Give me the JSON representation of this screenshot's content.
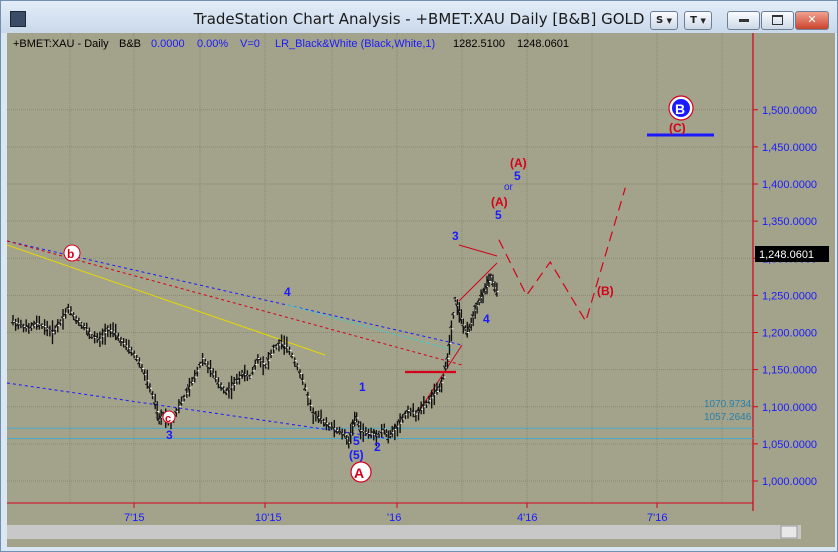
{
  "window": {
    "title": "TradeStation Chart Analysis - +BMET:XAU Daily [B&B] GOLD",
    "btn_s": "S",
    "btn_t": "T"
  },
  "header": {
    "symbol": "+BMET:XAU - Daily",
    "study": "B&B",
    "val1": "0.0000",
    "val2": "0.00%",
    "v": "V=0",
    "lr": "LR_Black&White (Black,White,1)",
    "p1": "1282.5100",
    "p2": "1248.0601"
  },
  "chart_data": {
    "type": "candlestick",
    "title": "",
    "xticks": [
      "7'15",
      "10'15",
      "'16",
      "4'16",
      "7'16"
    ],
    "yticks": [
      "1,500.0000",
      "1,450.0000",
      "1,400.0000",
      "1,350.0000",
      "1,300.0000",
      "1,250.0000",
      "1,200.0000",
      "1,150.0000",
      "1,100.0000",
      "1,050.0000",
      "1,000.0000"
    ],
    "ytick_values": [
      1500,
      1450,
      1400,
      1350,
      1300,
      1250,
      1200,
      1150,
      1100,
      1050,
      1000
    ],
    "ylim": [
      980,
      1520
    ],
    "last_price": "1,248.0601",
    "support_labels": [
      "1070.9734",
      "1057.2646"
    ],
    "support_values": [
      1070.9734,
      1057.2646
    ],
    "price_path": [
      [
        0,
        1215
      ],
      [
        2,
        1210
      ],
      [
        4,
        1205
      ],
      [
        6,
        1212
      ],
      [
        8,
        1208
      ],
      [
        10,
        1200
      ],
      [
        12,
        1214
      ],
      [
        14,
        1232
      ],
      [
        16,
        1218
      ],
      [
        18,
        1208
      ],
      [
        20,
        1195
      ],
      [
        22,
        1190
      ],
      [
        24,
        1205
      ],
      [
        26,
        1198
      ],
      [
        28,
        1185
      ],
      [
        30,
        1175
      ],
      [
        32,
        1160
      ],
      [
        34,
        1135
      ],
      [
        36,
        1105
      ],
      [
        37,
        1082
      ],
      [
        38,
        1090
      ],
      [
        40,
        1080
      ],
      [
        42,
        1100
      ],
      [
        44,
        1118
      ],
      [
        46,
        1140
      ],
      [
        48,
        1165
      ],
      [
        50,
        1150
      ],
      [
        52,
        1132
      ],
      [
        54,
        1120
      ],
      [
        56,
        1130
      ],
      [
        58,
        1145
      ],
      [
        60,
        1140
      ],
      [
        62,
        1165
      ],
      [
        64,
        1155
      ],
      [
        66,
        1178
      ],
      [
        68,
        1186
      ],
      [
        70,
        1176
      ],
      [
        72,
        1155
      ],
      [
        74,
        1125
      ],
      [
        76,
        1090
      ],
      [
        78,
        1083
      ],
      [
        80,
        1075
      ],
      [
        82,
        1068
      ],
      [
        84,
        1062
      ],
      [
        85,
        1052
      ],
      [
        86,
        1075
      ],
      [
        87,
        1085
      ],
      [
        88,
        1068
      ],
      [
        90,
        1064
      ],
      [
        92,
        1062
      ],
      [
        94,
        1070
      ],
      [
        95,
        1058
      ],
      [
        96,
        1065
      ],
      [
        98,
        1078
      ],
      [
        100,
        1095
      ],
      [
        102,
        1090
      ],
      [
        104,
        1100
      ],
      [
        106,
        1112
      ],
      [
        108,
        1125
      ],
      [
        109,
        1140
      ],
      [
        110,
        1165
      ],
      [
        111,
        1205
      ],
      [
        112,
        1245
      ],
      [
        113,
        1228
      ],
      [
        114,
        1210
      ],
      [
        115,
        1200
      ],
      [
        116,
        1212
      ],
      [
        117,
        1230
      ],
      [
        118,
        1242
      ],
      [
        119,
        1252
      ],
      [
        120,
        1262
      ],
      [
        121,
        1275
      ],
      [
        122,
        1260
      ],
      [
        123,
        1250
      ]
    ],
    "projection": [
      [
        123,
        1325
      ],
      [
        130,
        1250
      ],
      [
        136,
        1295
      ],
      [
        145,
        1215
      ],
      [
        155,
        1395
      ]
    ],
    "wave_labels": [
      {
        "text": "b",
        "color": "#d4001a"
      },
      {
        "text": "c",
        "color": "#d4001a"
      },
      {
        "text": "3",
        "color": "#1a1aff"
      },
      {
        "text": "4",
        "color": "#1a1aff"
      },
      {
        "text": "1",
        "color": "#1a1aff"
      },
      {
        "text": "5",
        "color": "#1a1aff"
      },
      {
        "text": "(5)",
        "color": "#1a1aff"
      },
      {
        "text": "2",
        "color": "#1a1aff"
      },
      {
        "text": "A",
        "color": "#d4001a"
      },
      {
        "text": "3",
        "color": "#1a1aff"
      },
      {
        "text": "4",
        "color": "#1a1aff"
      },
      {
        "text": "(A)",
        "color": "#d4001a"
      },
      {
        "text": "5",
        "color": "#1a1aff"
      },
      {
        "text": "(A)",
        "color": "#d4001a"
      },
      {
        "text": "5",
        "color": "#1a1aff"
      },
      {
        "text": "or",
        "color": "#1a1aff"
      },
      {
        "text": "(B)",
        "color": "#d4001a"
      },
      {
        "text": "(C)",
        "color": "#d4001a"
      },
      {
        "text": "B",
        "color": "#ffffff"
      }
    ],
    "grid": true
  },
  "colors": {
    "background": "#a3a38b",
    "grid": "#8c8c78",
    "price_axis": "#d4001a",
    "wave_blue": "#1a1aff",
    "wave_red": "#d4001a",
    "support_line": "#4aa8c8",
    "trend_yellow": "#e6d800"
  },
  "icons": [
    "app-icon",
    "minimize-icon",
    "restore-icon",
    "close-icon",
    "dropdown-arrow-icon"
  ]
}
